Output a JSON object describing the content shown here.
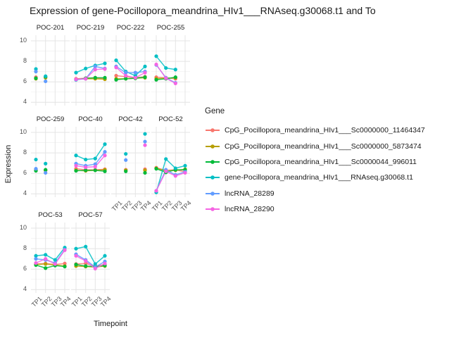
{
  "title": "Expression of gene-Pocillopora_meandrina_HIv1___RNAseq.g30068.t1 and To",
  "axes": {
    "x_title": "Timepoint",
    "y_title": "Expression"
  },
  "legend": {
    "title": "Gene"
  },
  "style": {
    "grid_major": "#E4E4E4",
    "grid_minor": "#F2F2F2",
    "axis_text": "#4D4D4D",
    "text": "#1A1A1A",
    "background": "#FFFFFF"
  },
  "chart_data": {
    "type": "line",
    "x": [
      "TP1",
      "TP2",
      "TP3",
      "TP4"
    ],
    "ylim": [
      3.7,
      10.5
    ],
    "y_major_ticks": [
      10,
      8,
      6,
      4
    ],
    "y_minor_gridlines": [
      9,
      7,
      5
    ],
    "facet_columns": 4,
    "grid": true,
    "legend_position": "right",
    "series": [
      {
        "name": "CpG_Pocillopora_meandrina_HIv1___Sc0000000_11464347",
        "color": "#F8766D"
      },
      {
        "name": "CpG_Pocillopora_meandrina_HIv1___Sc0000000_5873474",
        "color": "#B79F00"
      },
      {
        "name": "CpG_Pocillopora_meandrina_HIv1___Sc0000044_996011",
        "color": "#00BA38"
      },
      {
        "name": "gene-Pocillopora_meandrina_HIv1___RNAseq.g30068.t1",
        "color": "#00BFC4"
      },
      {
        "name": "lncRNA_28289",
        "color": "#619CFF"
      },
      {
        "name": "lncRNA_28290",
        "color": "#F564E3"
      }
    ],
    "facets": [
      {
        "name": "POC-201",
        "lines": false,
        "values": [
          [
            6.45,
            6.45,
            null,
            null
          ],
          [
            6.3,
            6.4,
            null,
            null
          ],
          [
            6.35,
            6.5,
            null,
            null
          ],
          [
            7.25,
            6.55,
            null,
            null
          ],
          [
            7.0,
            6.05,
            null,
            null
          ],
          [
            null,
            null,
            null,
            null
          ]
        ]
      },
      {
        "name": "POC-219",
        "lines": true,
        "values": [
          [
            6.3,
            6.35,
            6.4,
            6.3
          ],
          [
            6.25,
            6.3,
            6.3,
            6.25
          ],
          [
            6.2,
            6.35,
            6.4,
            6.4
          ],
          [
            6.9,
            7.3,
            7.6,
            7.8
          ],
          [
            6.2,
            6.3,
            7.5,
            7.3
          ],
          [
            6.25,
            6.3,
            7.2,
            7.25
          ]
        ]
      },
      {
        "name": "POC-222",
        "lines": true,
        "values": [
          [
            6.6,
            6.5,
            6.4,
            6.5
          ],
          [
            6.3,
            6.3,
            6.35,
            6.4
          ],
          [
            6.2,
            6.3,
            6.35,
            6.45
          ],
          [
            8.1,
            7.0,
            6.6,
            7.5
          ],
          [
            7.5,
            6.9,
            6.9,
            7.0
          ],
          [
            7.4,
            6.6,
            6.4,
            6.9
          ]
        ]
      },
      {
        "name": "POC-255",
        "lines": true,
        "values": [
          [
            6.45,
            6.4,
            6.3,
            null
          ],
          [
            6.3,
            6.35,
            6.4,
            null
          ],
          [
            6.2,
            6.3,
            6.45,
            null
          ],
          [
            8.5,
            7.35,
            7.2,
            null
          ],
          [
            7.65,
            6.4,
            5.9,
            null
          ],
          [
            7.7,
            6.35,
            5.85,
            null
          ]
        ]
      },
      {
        "name": "POC-259",
        "lines": false,
        "values": [
          [
            6.35,
            6.3,
            null,
            null
          ],
          [
            6.3,
            6.3,
            null,
            null
          ],
          [
            6.25,
            6.35,
            null,
            null
          ],
          [
            7.35,
            6.95,
            null,
            null
          ],
          [
            6.45,
            6.05,
            null,
            null
          ],
          [
            null,
            null,
            null,
            null
          ]
        ]
      },
      {
        "name": "POC-40",
        "lines": true,
        "values": [
          [
            6.45,
            6.35,
            6.35,
            6.4
          ],
          [
            6.3,
            6.25,
            6.3,
            6.35
          ],
          [
            6.25,
            6.3,
            6.3,
            6.2
          ],
          [
            7.75,
            7.35,
            7.45,
            8.85
          ],
          [
            6.95,
            6.75,
            6.9,
            8.1
          ],
          [
            6.75,
            6.6,
            6.65,
            7.75
          ]
        ]
      },
      {
        "name": "POC-42",
        "lines": false,
        "values": [
          [
            null,
            6.35,
            null,
            6.4
          ],
          [
            null,
            6.3,
            null,
            6.3
          ],
          [
            null,
            6.2,
            null,
            6.05
          ],
          [
            null,
            7.9,
            null,
            9.85
          ],
          [
            null,
            7.3,
            null,
            9.1
          ],
          [
            null,
            null,
            null,
            8.75
          ]
        ]
      },
      {
        "name": "POC-52",
        "lines": true,
        "values": [
          [
            6.55,
            6.3,
            6.35,
            6.15
          ],
          [
            6.5,
            6.25,
            6.3,
            6.4
          ],
          [
            6.45,
            6.1,
            6.35,
            6.35
          ],
          [
            4.15,
            7.4,
            6.5,
            6.75
          ],
          [
            4.3,
            6.35,
            5.85,
            6.15
          ],
          [
            4.3,
            6.2,
            5.75,
            6.05
          ]
        ]
      },
      {
        "name": "POC-53",
        "lines": true,
        "values": [
          [
            6.5,
            6.55,
            6.45,
            6.55
          ],
          [
            6.45,
            6.5,
            6.4,
            6.3
          ],
          [
            6.4,
            6.1,
            6.35,
            6.25
          ],
          [
            7.3,
            7.4,
            6.9,
            8.1
          ],
          [
            7.0,
            6.9,
            6.6,
            7.9
          ],
          [
            6.6,
            7.0,
            6.5,
            7.85
          ]
        ]
      },
      {
        "name": "POC-57",
        "lines": true,
        "values": [
          [
            6.5,
            6.55,
            6.3,
            6.45
          ],
          [
            6.3,
            6.25,
            6.2,
            6.3
          ],
          [
            6.45,
            6.3,
            6.25,
            6.35
          ],
          [
            8.0,
            8.2,
            6.5,
            7.3
          ],
          [
            7.45,
            6.9,
            6.2,
            6.75
          ],
          [
            7.3,
            6.8,
            6.05,
            6.55
          ]
        ]
      }
    ]
  }
}
